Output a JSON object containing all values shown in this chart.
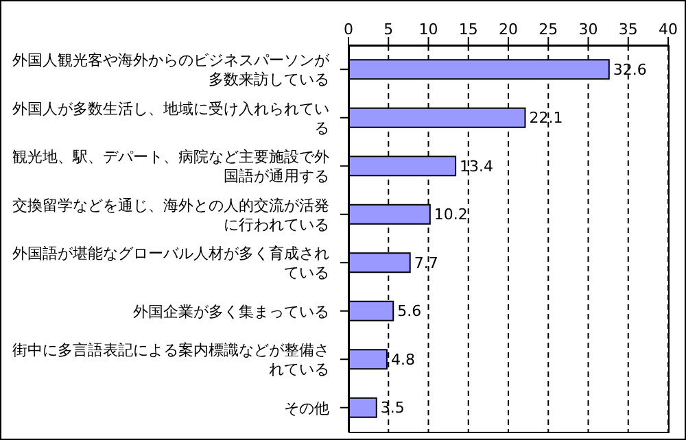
{
  "chart_data": {
    "type": "bar",
    "orientation": "horizontal",
    "categories": [
      "外国人観光客や海外からのビジネスパーソンが多数来訪している",
      "外国人が多数生活し、地域に受け入れられている",
      "観光地、駅、デパート、病院など主要施設で外国語が通用する",
      "交換留学などを通じ、海外との人的交流が活発に行われている",
      "外国語が堪能なグローバル人材が多く育成されている",
      "外国企業が多く集まっている",
      "街中に多言語表記による案内標識などが整備されている",
      "その他"
    ],
    "values": [
      32.6,
      22.1,
      13.4,
      10.2,
      7.7,
      5.6,
      4.8,
      3.5
    ],
    "color": "#9999ff",
    "xlim": [
      0,
      40
    ],
    "xticks": [
      0,
      5,
      10,
      15,
      20,
      25,
      30,
      35,
      40
    ],
    "grid": "x",
    "data_labels": true
  }
}
